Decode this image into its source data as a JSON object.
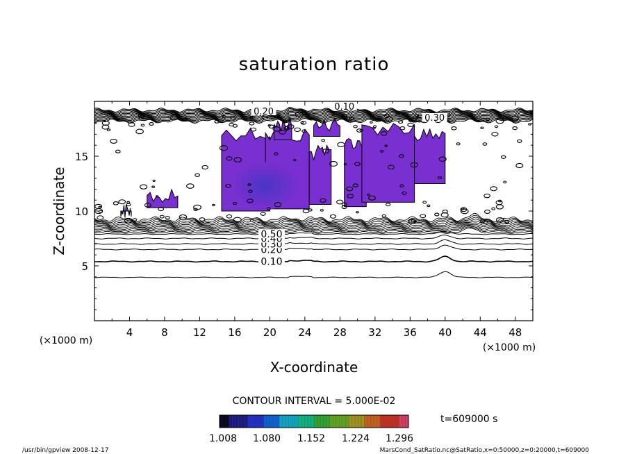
{
  "chart_data": {
    "type": "contour",
    "title": "saturation ratio",
    "xlabel": "X-coordinate",
    "ylabel": "Z-coordinate",
    "x_unit": "(×1000 m)",
    "z_unit": "(×1000 m)",
    "xlim": [
      0,
      50
    ],
    "ylim": [
      0,
      20
    ],
    "x_ticks": [
      4,
      8,
      12,
      16,
      20,
      24,
      28,
      32,
      36,
      40,
      44,
      48
    ],
    "y_ticks": [
      5,
      10,
      15
    ],
    "contour_interval_text": "CONTOUR INTERVAL = 5.000E-02",
    "time_text": "t=609000 s",
    "line_contours": [
      {
        "label": "0.10",
        "z": 5.4
      },
      {
        "label": "0.20",
        "z": 6.5
      },
      {
        "label": "0.30",
        "z": 7.0
      },
      {
        "label": "0.40",
        "z": 7.5
      },
      {
        "label": "0.50",
        "z": 7.9
      }
    ],
    "top_labels": [
      "0.10",
      "0.20",
      "0.30"
    ],
    "colorbar": {
      "tick_labels": [
        "1.008",
        "1.080",
        "1.152",
        "1.224",
        "1.296"
      ],
      "colors": [
        "#0a0820",
        "#1a1a80",
        "#2030c0",
        "#1060d0",
        "#10a0c0",
        "#10b080",
        "#30a030",
        "#60a020",
        "#a09020",
        "#c06020",
        "#c03020",
        "#d04060"
      ]
    },
    "fill_color": "#7a2fd0",
    "fill_core_color": "#5a30c8"
  },
  "footer": {
    "left": "/usr/bin/gpview   2008-12-17",
    "right": "MarsCond_SatRatio.nc@SatRatio,x=0:50000,z=0:20000,t=609000"
  }
}
